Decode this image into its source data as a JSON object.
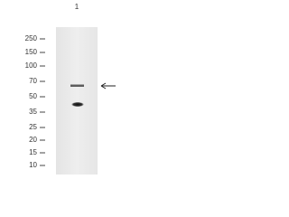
{
  "lane_label": "1",
  "markers": [
    250,
    150,
    100,
    70,
    50,
    35,
    25,
    20,
    15,
    10
  ]
}
